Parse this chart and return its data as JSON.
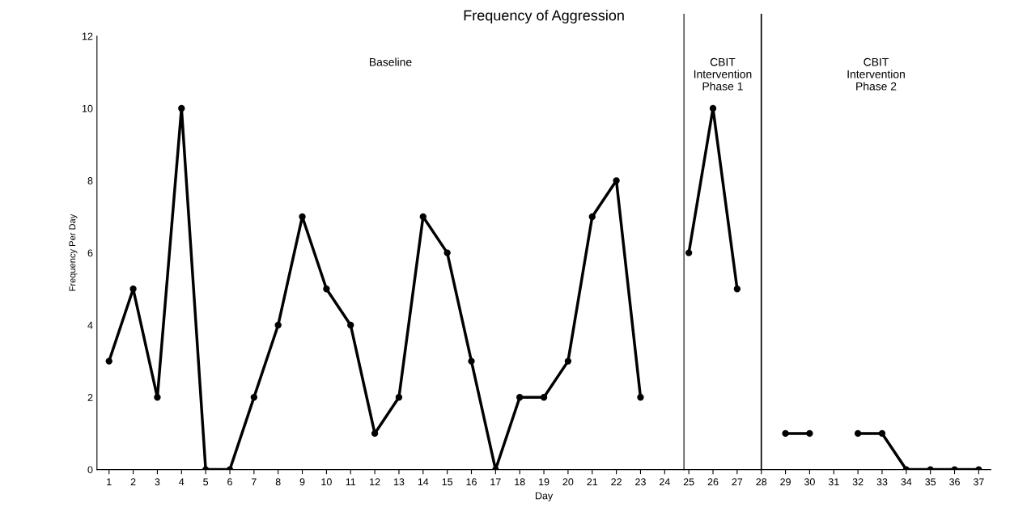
{
  "chart_data": {
    "type": "line",
    "title": "Frequency of Aggression",
    "xlabel": "Day",
    "ylabel": "Frequency Per Day",
    "x": [
      1,
      2,
      3,
      4,
      5,
      6,
      7,
      8,
      9,
      10,
      11,
      12,
      13,
      14,
      15,
      16,
      17,
      18,
      19,
      20,
      21,
      22,
      23,
      24,
      25,
      26,
      27,
      28,
      29,
      30,
      31,
      32,
      33,
      34,
      35,
      36,
      37
    ],
    "series": [
      {
        "color": "#000000",
        "values": [
          3,
          5,
          2,
          10,
          0,
          0,
          2,
          4,
          7,
          5,
          4,
          1,
          2,
          7,
          6,
          3,
          0,
          2,
          2,
          3,
          7,
          8,
          2,
          null,
          6,
          10,
          5,
          null,
          1,
          1,
          null,
          1,
          1,
          0,
          0,
          0,
          0
        ]
      }
    ],
    "xlim": [
      0.5,
      37.5
    ],
    "xticks": [
      1,
      2,
      3,
      4,
      5,
      6,
      7,
      8,
      9,
      10,
      11,
      12,
      13,
      14,
      15,
      16,
      17,
      18,
      19,
      20,
      21,
      22,
      23,
      24,
      25,
      26,
      27,
      28,
      29,
      30,
      31,
      32,
      33,
      34,
      35,
      36,
      37
    ],
    "ylim": [
      0,
      12
    ],
    "yticks": [
      0,
      2,
      4,
      6,
      8,
      10,
      12
    ],
    "ref_lines": [
      {
        "axis": "x",
        "value": 24.8,
        "color": "#555555"
      },
      {
        "axis": "x",
        "value": 28,
        "color": "#000000"
      }
    ],
    "annotations": [
      "Baseline",
      "CBIT\nIntervention\nPhase 1",
      "CBIT\nIntervention\nPhase 2"
    ],
    "marker": "circle",
    "line_style": "solid",
    "grid": false,
    "legend": false
  }
}
